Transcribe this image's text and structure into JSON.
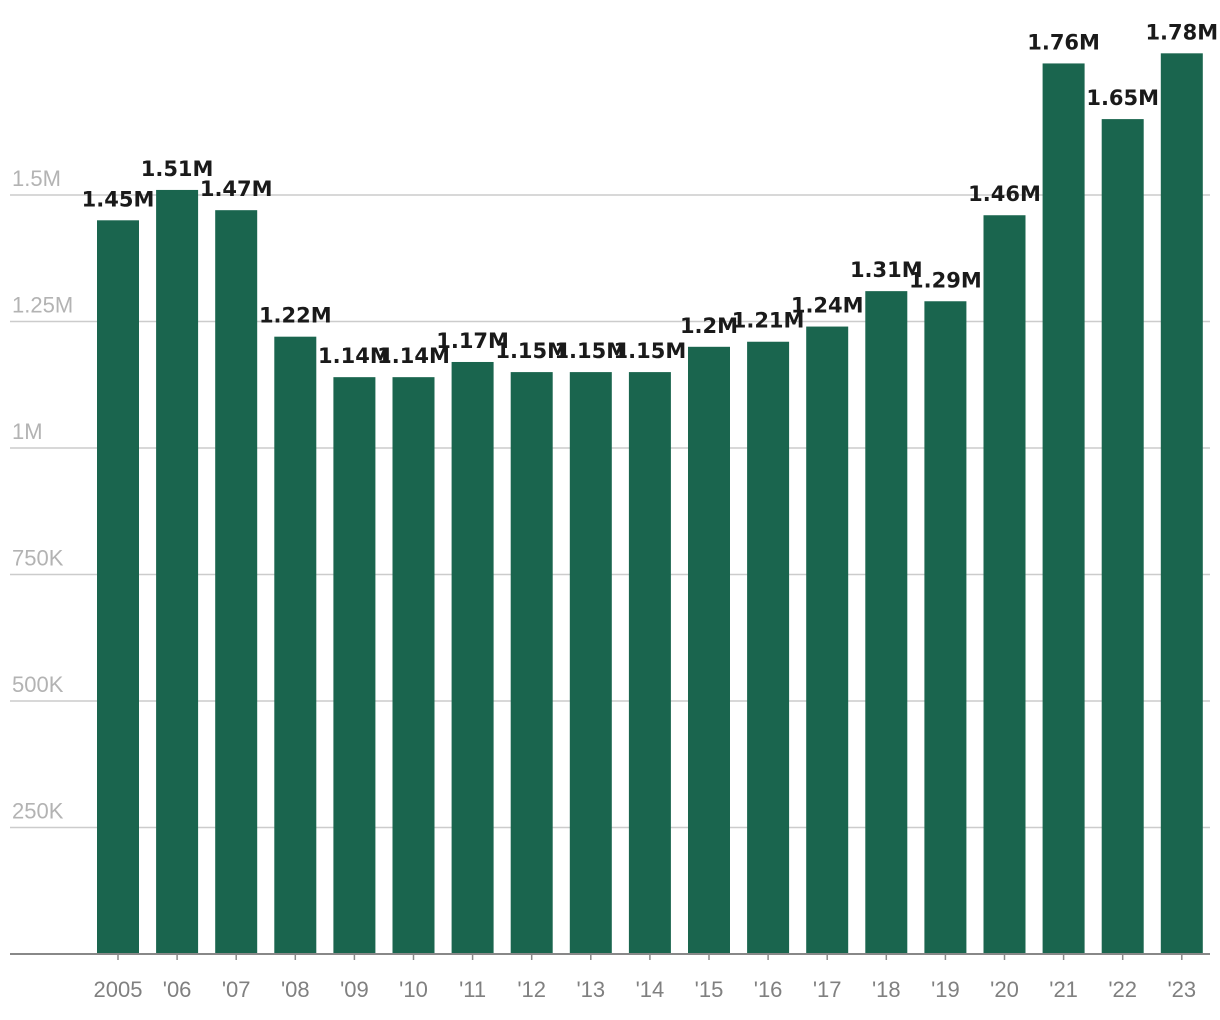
{
  "chart_data": {
    "type": "bar",
    "categories": [
      "2005",
      "'06",
      "'07",
      "'08",
      "'09",
      "'10",
      "'11",
      "'12",
      "'13",
      "'14",
      "'15",
      "'16",
      "'17",
      "'18",
      "'19",
      "'20",
      "'21",
      "'22",
      "'23"
    ],
    "values": [
      1450000,
      1510000,
      1470000,
      1220000,
      1140000,
      1140000,
      1170000,
      1150000,
      1150000,
      1150000,
      1200000,
      1210000,
      1240000,
      1310000,
      1290000,
      1460000,
      1760000,
      1650000,
      1780000
    ],
    "data_labels": [
      "1.45M",
      "1.51M",
      "1.47M",
      "1.22M",
      "1.14M",
      "1.14M",
      "1.17M",
      "1.15M",
      "1.15M",
      "1.15M",
      "1.2M",
      "1.21M",
      "1.24M",
      "1.31M",
      "1.29M",
      "1.46M",
      "1.76M",
      "1.65M",
      "1.78M"
    ],
    "y_ticks": [
      250000,
      500000,
      750000,
      1000000,
      1250000,
      1500000
    ],
    "y_tick_labels": [
      "250K",
      "500K",
      "750K",
      "1M",
      "1.25M",
      "1.5M"
    ],
    "ylim": [
      0,
      1800000
    ],
    "grid": true,
    "bar_color": "#1a654e"
  }
}
